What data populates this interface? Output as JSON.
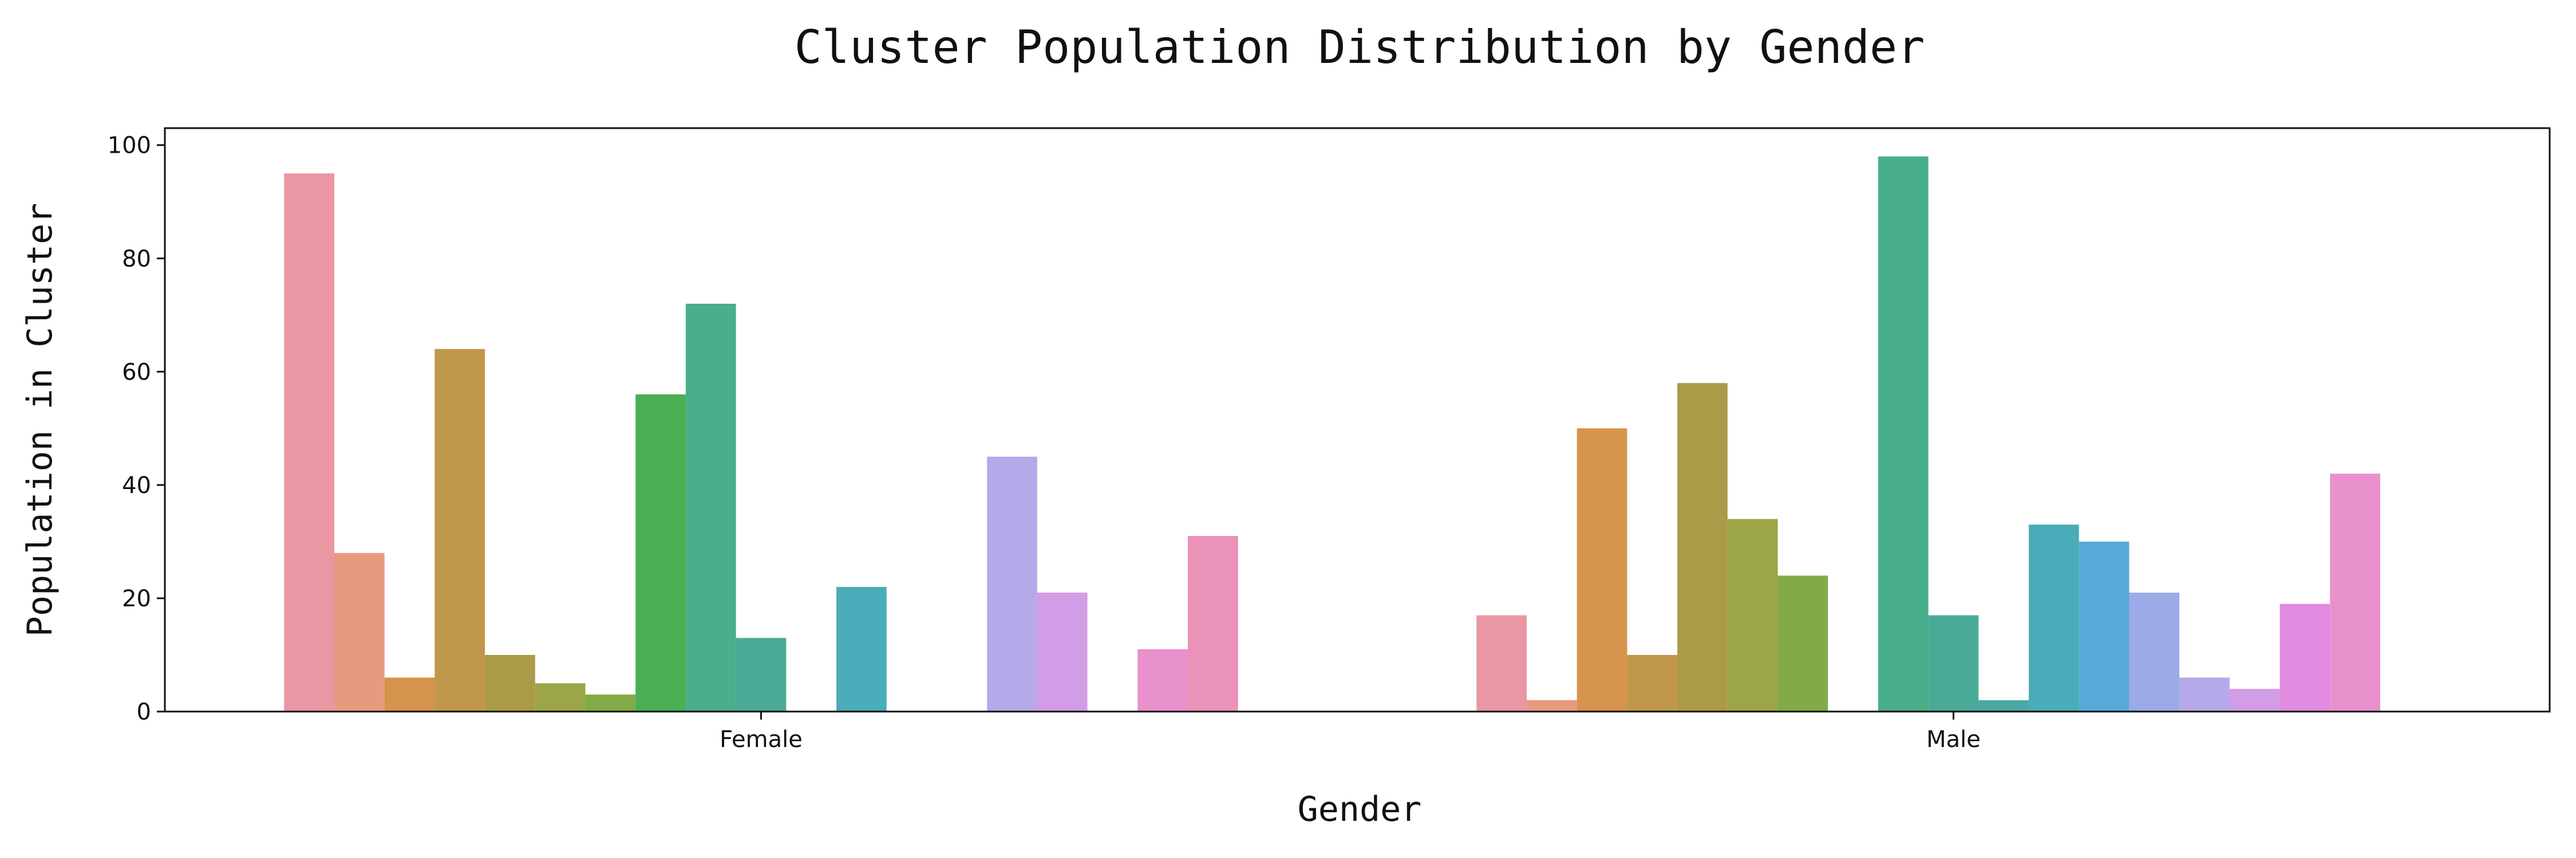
{
  "chart_data": {
    "type": "bar",
    "title": "Cluster Population Distribution by Gender",
    "xlabel": "Gender",
    "ylabel": "Population in Cluster",
    "categories": [
      "Female",
      "Male"
    ],
    "ylim": [
      0,
      103
    ],
    "yticks": [
      0,
      20,
      40,
      60,
      80,
      100
    ],
    "grid": false,
    "legend": "none",
    "series": [
      {
        "values": [
          95,
          17
        ],
        "color": "#ea96a3"
      },
      {
        "values": [
          28,
          2
        ],
        "color": "#e89a7f"
      },
      {
        "values": [
          6,
          50
        ],
        "color": "#d6934b"
      },
      {
        "values": [
          64,
          10
        ],
        "color": "#c0964b"
      },
      {
        "values": [
          10,
          58
        ],
        "color": "#ab9a47"
      },
      {
        "values": [
          5,
          34
        ],
        "color": "#9ca547"
      },
      {
        "values": [
          3,
          24
        ],
        "color": "#82aa46"
      },
      {
        "values": [
          56,
          0
        ],
        "color": "#49af52"
      },
      {
        "values": [
          72,
          98
        ],
        "color": "#49af8a"
      },
      {
        "values": [
          13,
          17
        ],
        "color": "#49ab97"
      },
      {
        "values": [
          0,
          2
        ],
        "color": "#49a8a4"
      },
      {
        "values": [
          22,
          33
        ],
        "color": "#4aacb8"
      },
      {
        "values": [
          0,
          30
        ],
        "color": "#57aad8"
      },
      {
        "values": [
          0,
          21
        ],
        "color": "#9aabe8"
      },
      {
        "values": [
          45,
          6
        ],
        "color": "#b6a9e9"
      },
      {
        "values": [
          21,
          4
        ],
        "color": "#d29de6"
      },
      {
        "values": [
          0,
          19
        ],
        "color": "#e18be1"
      },
      {
        "values": [
          11,
          42
        ],
        "color": "#e891cc"
      },
      {
        "values": [
          31,
          0
        ],
        "color": "#ea92b8"
      }
    ]
  }
}
